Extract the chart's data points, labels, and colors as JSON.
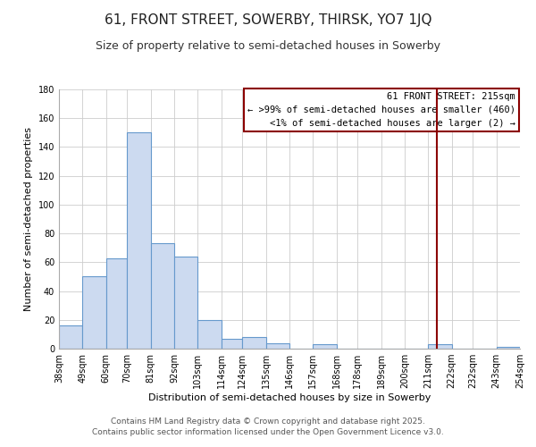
{
  "title": "61, FRONT STREET, SOWERBY, THIRSK, YO7 1JQ",
  "subtitle": "Size of property relative to semi-detached houses in Sowerby",
  "xlabel": "Distribution of semi-detached houses by size in Sowerby",
  "ylabel": "Number of semi-detached properties",
  "bar_color": "#ccdaf0",
  "bar_edge_color": "#6699cc",
  "grid_color": "#cccccc",
  "bg_color": "#ffffff",
  "vline_color": "#8b0000",
  "vline_x": 215,
  "bins": [
    38,
    49,
    60,
    70,
    81,
    92,
    103,
    114,
    124,
    135,
    146,
    157,
    168,
    178,
    189,
    200,
    211,
    222,
    232,
    243,
    254
  ],
  "counts": [
    16,
    50,
    63,
    150,
    73,
    64,
    20,
    7,
    8,
    4,
    0,
    3,
    0,
    0,
    0,
    0,
    3,
    0,
    0,
    1
  ],
  "xlim": [
    38,
    254
  ],
  "ylim": [
    0,
    180
  ],
  "yticks": [
    0,
    20,
    40,
    60,
    80,
    100,
    120,
    140,
    160,
    180
  ],
  "xtick_labels": [
    "38sqm",
    "49sqm",
    "60sqm",
    "70sqm",
    "81sqm",
    "92sqm",
    "103sqm",
    "114sqm",
    "124sqm",
    "135sqm",
    "146sqm",
    "157sqm",
    "168sqm",
    "178sqm",
    "189sqm",
    "200sqm",
    "211sqm",
    "222sqm",
    "232sqm",
    "243sqm",
    "254sqm"
  ],
  "annotation_title": "61 FRONT STREET: 215sqm",
  "annotation_line1": "← >99% of semi-detached houses are smaller (460)",
  "annotation_line2": "<1% of semi-detached houses are larger (2) →",
  "footer1": "Contains HM Land Registry data © Crown copyright and database right 2025.",
  "footer2": "Contains public sector information licensed under the Open Government Licence v3.0.",
  "title_fontsize": 11,
  "subtitle_fontsize": 9,
  "label_fontsize": 8,
  "tick_fontsize": 7,
  "annotation_fontsize": 7.5,
  "footer_fontsize": 6.5
}
